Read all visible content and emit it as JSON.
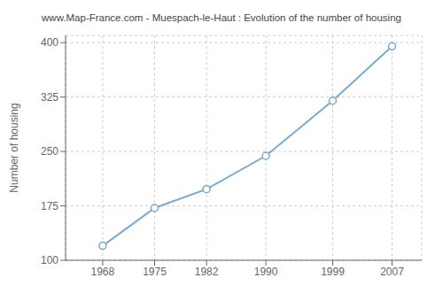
{
  "chart_data": {
    "type": "line",
    "title": "www.Map-France.com - Muespach-le-Haut : Evolution of the number of housing",
    "ylabel": "Number of housing",
    "x": [
      1968,
      1975,
      1982,
      1990,
      1999,
      2007
    ],
    "values": [
      120,
      172,
      198,
      244,
      320,
      395
    ],
    "color": "#7aaacf",
    "marker": "circle",
    "xlim": [
      1963,
      2011
    ],
    "xticks": [
      1968,
      1975,
      1982,
      1990,
      1999,
      2007
    ],
    "ylim": [
      100,
      410
    ],
    "yticks": [
      100,
      175,
      250,
      325,
      400
    ],
    "grid": true
  }
}
